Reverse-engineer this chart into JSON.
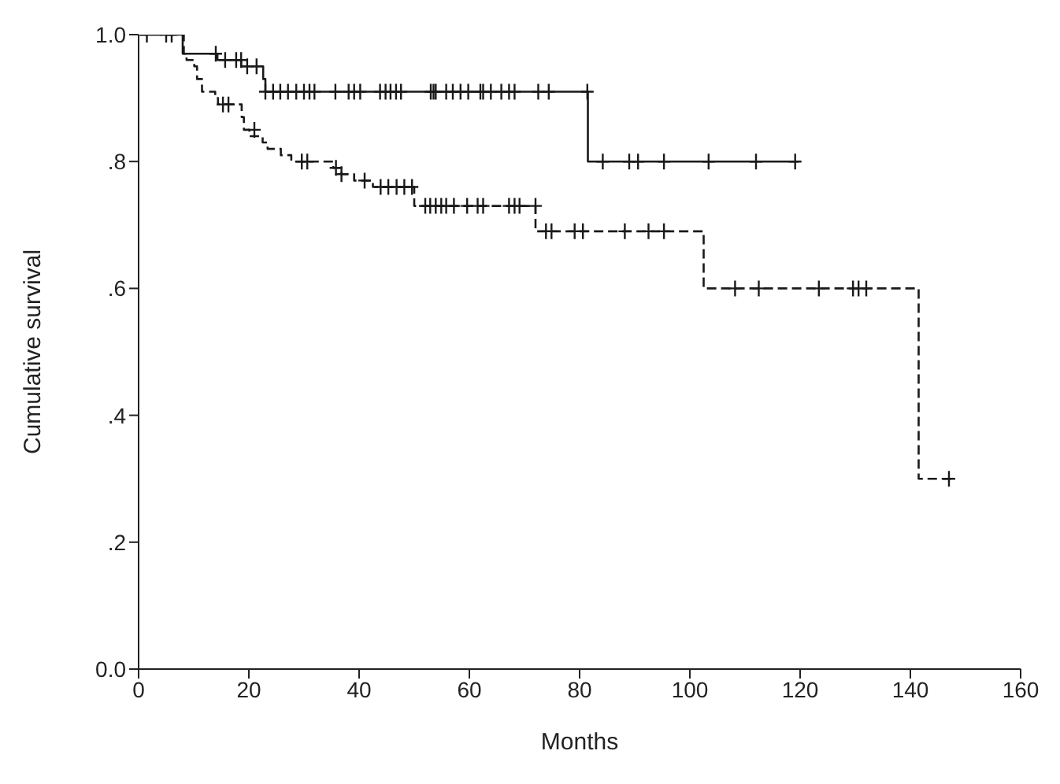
{
  "chart_data": {
    "type": "step",
    "xlabel": "Months",
    "ylabel": "Cumulative survival",
    "xlim": [
      0,
      160
    ],
    "xticks": [
      0,
      20,
      40,
      60,
      80,
      100,
      120,
      140,
      160
    ],
    "ylim": [
      0,
      1
    ],
    "yticks": [
      {
        "value": 0,
        "label": "0.0"
      },
      {
        "value": 0.2,
        "label": ".2"
      },
      {
        "value": 0.4,
        "label": ".4"
      },
      {
        "value": 0.6,
        "label": ".6"
      },
      {
        "value": 0.8,
        "label": ".8"
      },
      {
        "value": 1,
        "label": "1.0"
      }
    ],
    "grid": false,
    "series": [
      {
        "line_style": "solid",
        "color": "#1a1a1a",
        "x": [
          0,
          8,
          14.3,
          18.6,
          22.6,
          23,
          81.5,
          119.7
        ],
        "values": [
          1,
          0.97,
          0.96,
          0.95,
          0.93,
          0.91,
          0.8,
          0.8
        ]
      },
      {
        "line_style": "dashed",
        "color": "#1a1a1a",
        "x": [
          0,
          8.2,
          8.7,
          10.1,
          10.6,
          11.5,
          13.9,
          14.4,
          18.7,
          19.1,
          20.1,
          22.5,
          23.4,
          25.8,
          27.7,
          31,
          35.3,
          36.8,
          39.1,
          41,
          42.5,
          50,
          72,
          102.5,
          141.5,
          147.7
        ],
        "values": [
          1,
          0.97,
          0.96,
          0.95,
          0.93,
          0.91,
          0.9,
          0.89,
          0.87,
          0.85,
          0.84,
          0.83,
          0.82,
          0.81,
          0.8,
          0.8,
          0.79,
          0.78,
          0.77,
          0.77,
          0.76,
          0.73,
          0.69,
          0.6,
          0.3,
          0.3
        ]
      },
      {
        "type": "scatter",
        "marker": "cross",
        "color": "#1a1a1a",
        "x": [
          1.5,
          5,
          6,
          14,
          15.7,
          17.7,
          18.6,
          19.7,
          21.4,
          23,
          24.4,
          25.7,
          27.1,
          28.6,
          30,
          31,
          31.9,
          35.7,
          38.1,
          39.1,
          40.2,
          43.8,
          44.8,
          45.7,
          46.7,
          47.6,
          53,
          53.5,
          53.9,
          55.8,
          57,
          58.4,
          59.8,
          62,
          62.5,
          63.9,
          65.8,
          67.2,
          68.2,
          72.5,
          74.4,
          81.4,
          84.2,
          89,
          90.6,
          95.3,
          103.4,
          112,
          119.1
        ],
        "values": [
          1,
          1,
          1,
          0.97,
          0.96,
          0.96,
          0.96,
          0.95,
          0.95,
          0.91,
          0.91,
          0.91,
          0.91,
          0.91,
          0.91,
          0.91,
          0.91,
          0.91,
          0.91,
          0.91,
          0.91,
          0.91,
          0.91,
          0.91,
          0.91,
          0.91,
          0.91,
          0.91,
          0.91,
          0.91,
          0.91,
          0.91,
          0.91,
          0.91,
          0.91,
          0.91,
          0.91,
          0.91,
          0.91,
          0.91,
          0.91,
          0.91,
          0.8,
          0.8,
          0.8,
          0.8,
          0.8,
          0.8,
          0.8
        ]
      },
      {
        "type": "scatter",
        "marker": "cross",
        "color": "#1a1a1a",
        "x": [
          15.3,
          16.3,
          21,
          29.6,
          30.6,
          35.8,
          36.8,
          41,
          43.9,
          45.3,
          46.8,
          48.2,
          49.6,
          52,
          52.9,
          53.9,
          54.9,
          55.8,
          57.2,
          59.6,
          61.5,
          62.5,
          67.2,
          68.2,
          69.1,
          72,
          73.9,
          74.9,
          79.1,
          80.6,
          88.2,
          92.5,
          95.3,
          108.2,
          112.5,
          123.4,
          129.6,
          130.6,
          132,
          147
        ],
        "values": [
          0.89,
          0.89,
          0.85,
          0.8,
          0.8,
          0.79,
          0.78,
          0.77,
          0.76,
          0.76,
          0.76,
          0.76,
          0.76,
          0.73,
          0.73,
          0.73,
          0.73,
          0.73,
          0.73,
          0.73,
          0.73,
          0.73,
          0.73,
          0.73,
          0.73,
          0.73,
          0.69,
          0.69,
          0.69,
          0.69,
          0.69,
          0.69,
          0.69,
          0.6,
          0.6,
          0.6,
          0.6,
          0.6,
          0.6,
          0.3
        ]
      }
    ]
  }
}
